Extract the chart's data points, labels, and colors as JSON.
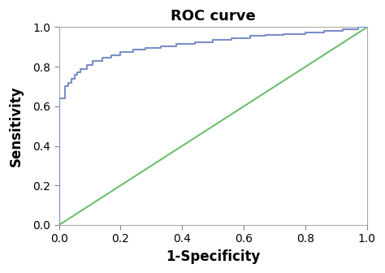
{
  "title": "ROC curve",
  "xlabel": "1-Specificity",
  "ylabel": "Sensitivity",
  "xlim": [
    0.0,
    1.0
  ],
  "ylim": [
    0.0,
    1.0
  ],
  "xticks": [
    0.0,
    0.2,
    0.4,
    0.6,
    0.8,
    1.0
  ],
  "yticks": [
    0.0,
    0.2,
    0.4,
    0.6,
    0.8,
    1.0
  ],
  "roc_color": "#7b8ec8",
  "diagonal_color": "#6dbf6d",
  "roc_x": [
    0.0,
    0.0,
    0.02,
    0.02,
    0.03,
    0.03,
    0.04,
    0.04,
    0.05,
    0.05,
    0.06,
    0.06,
    0.07,
    0.07,
    0.09,
    0.09,
    0.11,
    0.11,
    0.14,
    0.14,
    0.17,
    0.17,
    0.2,
    0.2,
    0.24,
    0.24,
    0.28,
    0.28,
    0.33,
    0.33,
    0.38,
    0.38,
    0.44,
    0.44,
    0.5,
    0.5,
    0.56,
    0.56,
    0.62,
    0.62,
    0.67,
    0.67,
    0.73,
    0.73,
    0.8,
    0.8,
    0.86,
    0.86,
    0.92,
    0.92,
    0.97,
    0.97,
    1.0
  ],
  "roc_y": [
    0.0,
    0.64,
    0.64,
    0.7,
    0.7,
    0.72,
    0.72,
    0.74,
    0.74,
    0.76,
    0.76,
    0.77,
    0.77,
    0.79,
    0.79,
    0.81,
    0.81,
    0.83,
    0.83,
    0.845,
    0.845,
    0.86,
    0.86,
    0.875,
    0.875,
    0.885,
    0.885,
    0.895,
    0.895,
    0.905,
    0.905,
    0.915,
    0.915,
    0.925,
    0.925,
    0.935,
    0.935,
    0.945,
    0.945,
    0.955,
    0.955,
    0.96,
    0.96,
    0.965,
    0.965,
    0.975,
    0.975,
    0.98,
    0.98,
    0.99,
    0.99,
    1.0,
    1.0
  ],
  "title_fontsize": 13,
  "label_fontsize": 12,
  "tick_fontsize": 10,
  "background_color": "#ffffff",
  "plot_bg_color": "#ffffff",
  "spine_color": "#aaaaaa",
  "figsize": [
    4.74,
    3.36
  ],
  "dpi": 100
}
